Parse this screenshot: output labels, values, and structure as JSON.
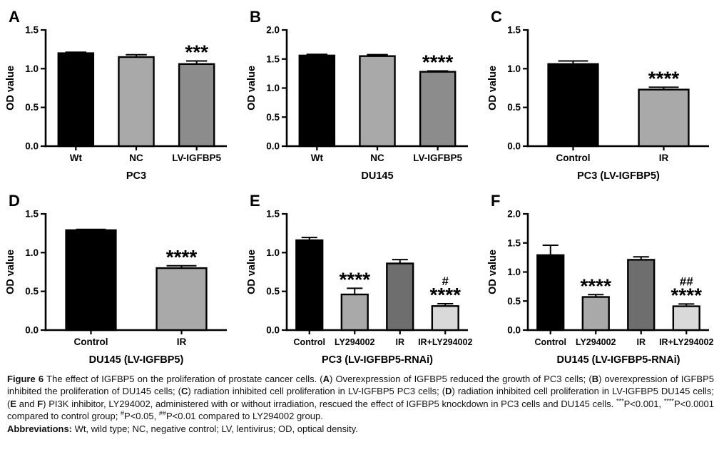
{
  "figure": {
    "background": "#ffffff",
    "caption": {
      "main_segments": [
        {
          "text": "Figure 6 ",
          "bold": true
        },
        {
          "text": "The effect of IGFBP5 on the proliferation of prostate cancer cells. ("
        },
        {
          "text": "A",
          "bold": true
        },
        {
          "text": ") Overexpression of IGFBP5 reduced the growth of PC3 cells; ("
        },
        {
          "text": "B",
          "bold": true
        },
        {
          "text": ") overexpression of IGFBP5 inhibited the proliferation of DU145 cells; ("
        },
        {
          "text": "C",
          "bold": true
        },
        {
          "text": ") radiation inhibited cell proliferation in LV-IGFBP5 PC3 cells; ("
        },
        {
          "text": "D",
          "bold": true
        },
        {
          "text": ") radiation inhibited cell proliferation in LV-IGFBP5 DU145 cells; ("
        },
        {
          "text": "E",
          "bold": true
        },
        {
          "text": " and "
        },
        {
          "text": "F",
          "bold": true
        },
        {
          "text": ") PI3K inhibitor, LY294002, administered with or without irradiation, rescued the effect of IGFBP5 knockdown in PC3 cells and DU145 cells. "
        },
        {
          "text": "***",
          "sup": true
        },
        {
          "text": "P<0.001, "
        },
        {
          "text": "****",
          "sup": true
        },
        {
          "text": "P<0.0001 compared to control group; "
        },
        {
          "text": "#",
          "sup": true
        },
        {
          "text": "P<0.05, "
        },
        {
          "text": "##",
          "sup": true
        },
        {
          "text": "P<0.01 compared to LY294002 group."
        }
      ],
      "abbreviations_segments": [
        {
          "text": "Abbreviations: ",
          "bold": true
        },
        {
          "text": "Wt, wild type; NC, negative control; LV, lentivirus; OD, optical density."
        }
      ]
    }
  },
  "colors": {
    "axis": "#000000",
    "bar_black": "#000000",
    "bar_light_gray": "#a9a9a9",
    "bar_mid_gray": "#8c8c8c",
    "bar_dark_gray": "#6e6e6e",
    "bar_pale_gray": "#d9d9d9"
  },
  "chart_data": [
    {
      "type": "bar",
      "panel_label": "A",
      "xlabel": "PC3",
      "ylabel": "OD value",
      "ylim": [
        0,
        1.5
      ],
      "yticks": [
        0.0,
        0.5,
        1.0,
        1.5
      ],
      "grid": false,
      "legend": "none",
      "categories": [
        "Wt",
        "NC",
        "LV-IGFBP5"
      ],
      "values": [
        1.2,
        1.15,
        1.06
      ],
      "errors": [
        0.012,
        0.03,
        0.04
      ],
      "bar_colors": [
        "#000000",
        "#a9a9a9",
        "#8c8c8c"
      ],
      "annotations": [
        null,
        null,
        "***"
      ],
      "annotations2": [
        null,
        null,
        null
      ]
    },
    {
      "type": "bar",
      "panel_label": "B",
      "xlabel": "DU145",
      "ylabel": "OD value",
      "ylim": [
        0,
        2.0
      ],
      "yticks": [
        0.0,
        0.5,
        1.0,
        1.5,
        2.0
      ],
      "grid": false,
      "legend": "none",
      "categories": [
        "Wt",
        "NC",
        "LV-IGFBP5"
      ],
      "values": [
        1.56,
        1.55,
        1.28
      ],
      "errors": [
        0.02,
        0.025,
        0.015
      ],
      "bar_colors": [
        "#000000",
        "#a9a9a9",
        "#8c8c8c"
      ],
      "annotations": [
        null,
        null,
        "****"
      ],
      "annotations2": [
        null,
        null,
        null
      ]
    },
    {
      "type": "bar",
      "panel_label": "C",
      "xlabel": "PC3 (LV-IGFBP5)",
      "ylabel": "OD value",
      "ylim": [
        0,
        1.5
      ],
      "yticks": [
        0.0,
        0.5,
        1.0,
        1.5
      ],
      "grid": false,
      "legend": "none",
      "categories": [
        "Control",
        "IR"
      ],
      "values": [
        1.06,
        0.73
      ],
      "errors": [
        0.04,
        0.03
      ],
      "bar_colors": [
        "#000000",
        "#a9a9a9"
      ],
      "annotations": [
        null,
        "****"
      ],
      "annotations2": [
        null,
        null
      ]
    },
    {
      "type": "bar",
      "panel_label": "D",
      "xlabel": "DU145 (LV-IGFBP5)",
      "ylabel": "OD value",
      "ylim": [
        0,
        1.5
      ],
      "yticks": [
        0.0,
        0.5,
        1.0,
        1.5
      ],
      "grid": false,
      "legend": "none",
      "categories": [
        "Control",
        "IR"
      ],
      "values": [
        1.29,
        0.8
      ],
      "errors": [
        0.01,
        0.03
      ],
      "bar_colors": [
        "#000000",
        "#a9a9a9"
      ],
      "annotations": [
        null,
        "****"
      ],
      "annotations2": [
        null,
        null
      ]
    },
    {
      "type": "bar",
      "panel_label": "E",
      "xlabel": "PC3 (LV-IGFBP5-RNAi)",
      "ylabel": "OD value",
      "ylim": [
        0,
        1.5
      ],
      "yticks": [
        0.0,
        0.5,
        1.0,
        1.5
      ],
      "grid": false,
      "legend": "none",
      "categories": [
        "Control",
        "LY294002",
        "IR",
        "IR+LY294002"
      ],
      "values": [
        1.16,
        0.46,
        0.86,
        0.31
      ],
      "errors": [
        0.035,
        0.08,
        0.05,
        0.03
      ],
      "bar_colors": [
        "#000000",
        "#a9a9a9",
        "#6e6e6e",
        "#d9d9d9"
      ],
      "annotations": [
        null,
        "****",
        null,
        "****"
      ],
      "annotations2": [
        null,
        null,
        null,
        "#"
      ]
    },
    {
      "type": "bar",
      "panel_label": "F",
      "xlabel": "DU145 (LV-IGFBP5-RNAi)",
      "ylabel": "OD value",
      "ylim": [
        0,
        2.0
      ],
      "yticks": [
        0.0,
        0.5,
        1.0,
        1.5,
        2.0
      ],
      "grid": false,
      "legend": "none",
      "categories": [
        "Control",
        "LY294002",
        "IR",
        "IR+LY294002"
      ],
      "values": [
        1.29,
        0.57,
        1.21,
        0.41
      ],
      "errors": [
        0.17,
        0.04,
        0.05,
        0.04
      ],
      "bar_colors": [
        "#000000",
        "#a9a9a9",
        "#6e6e6e",
        "#d9d9d9"
      ],
      "annotations": [
        null,
        "****",
        null,
        "****"
      ],
      "annotations2": [
        null,
        null,
        null,
        "##"
      ]
    }
  ]
}
